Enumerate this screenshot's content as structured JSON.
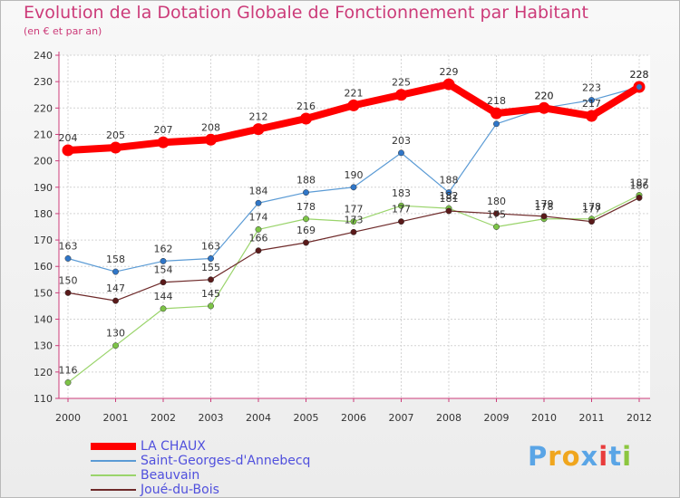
{
  "header": {
    "title": "Evolution de la Dotation Globale de Fonctionnement par Habitant",
    "subtitle": "(en € et par an)"
  },
  "brand": {
    "letters": [
      "P",
      "r",
      "o",
      "x",
      "i",
      "t",
      "i"
    ],
    "colors": [
      "#5aa5e6",
      "#f0a61e",
      "#f0a61e",
      "#5aa5e6",
      "#e83c3c",
      "#5aa5e6",
      "#8cc63f"
    ]
  },
  "colors": {
    "title": "#cc3b79",
    "axis": "#cc3b79",
    "legend_text": "#5050dd"
  },
  "chart_data": {
    "type": "line",
    "title": "Evolution de la Dotation Globale de Fonctionnement par Habitant",
    "subtitle": "(en € et par an)",
    "xlabel": "",
    "ylabel": "",
    "ylim": [
      110,
      240
    ],
    "yticks": [
      110,
      120,
      130,
      140,
      150,
      160,
      170,
      180,
      190,
      200,
      210,
      220,
      230,
      240
    ],
    "grid": true,
    "legend_position": "bottom-left",
    "categories": [
      "2000",
      "2001",
      "2002",
      "2003",
      "2004",
      "2005",
      "2006",
      "2007",
      "2008",
      "2009",
      "2010",
      "2011",
      "2012"
    ],
    "series": [
      {
        "name": "Saint-Georges-d'Annebecq",
        "color": "#5b9bd5",
        "marker": "#2f76c8",
        "width": 1.2,
        "values": [
          163,
          158,
          162,
          163,
          184,
          188,
          190,
          203,
          188,
          214,
          220,
          223,
          228
        ],
        "labels": [
          "163",
          "158",
          "162",
          "163",
          "184",
          "188",
          "190",
          "203",
          "188",
          "",
          "220",
          "223",
          "228"
        ]
      },
      {
        "name": "Beauvain",
        "color": "#9ad46b",
        "marker": "#7dc447",
        "width": 1.2,
        "values": [
          116,
          130,
          144,
          145,
          174,
          178,
          177,
          183,
          182,
          175,
          178,
          178,
          187
        ],
        "labels": [
          "116",
          "130",
          "144",
          "145",
          "174",
          "178",
          "177",
          "183",
          "182",
          "175",
          "178",
          "178",
          "187"
        ]
      },
      {
        "name": "Joué-du-Bois",
        "color": "#6e2a2a",
        "marker": "#5a1a1a",
        "width": 1.2,
        "values": [
          150,
          147,
          154,
          155,
          166,
          169,
          173,
          177,
          181,
          180,
          179,
          177,
          186
        ],
        "labels": [
          "150",
          "147",
          "154",
          "155",
          "166",
          "169",
          "173",
          "177",
          "181",
          "180",
          "179",
          "177",
          "186"
        ]
      },
      {
        "name": "LA CHAUX",
        "color": "#ff0000",
        "marker": "#ff0000",
        "width": 8,
        "values": [
          204,
          205,
          207,
          208,
          212,
          216,
          221,
          225,
          229,
          218,
          220,
          217,
          228
        ],
        "labels": [
          "204",
          "205",
          "207",
          "208",
          "212",
          "216",
          "221",
          "225",
          "229",
          "218",
          "220",
          "217",
          "228"
        ]
      }
    ]
  },
  "legend": {
    "items": [
      {
        "label": "LA CHAUX",
        "color": "#ff0000",
        "thickness": 8
      },
      {
        "label": "Saint-Georges-d'Annebecq",
        "color": "#5b9bd5",
        "thickness": 2
      },
      {
        "label": "Beauvain",
        "color": "#9ad46b",
        "thickness": 2
      },
      {
        "label": "Joué-du-Bois",
        "color": "#6e2a2a",
        "thickness": 2
      }
    ]
  }
}
